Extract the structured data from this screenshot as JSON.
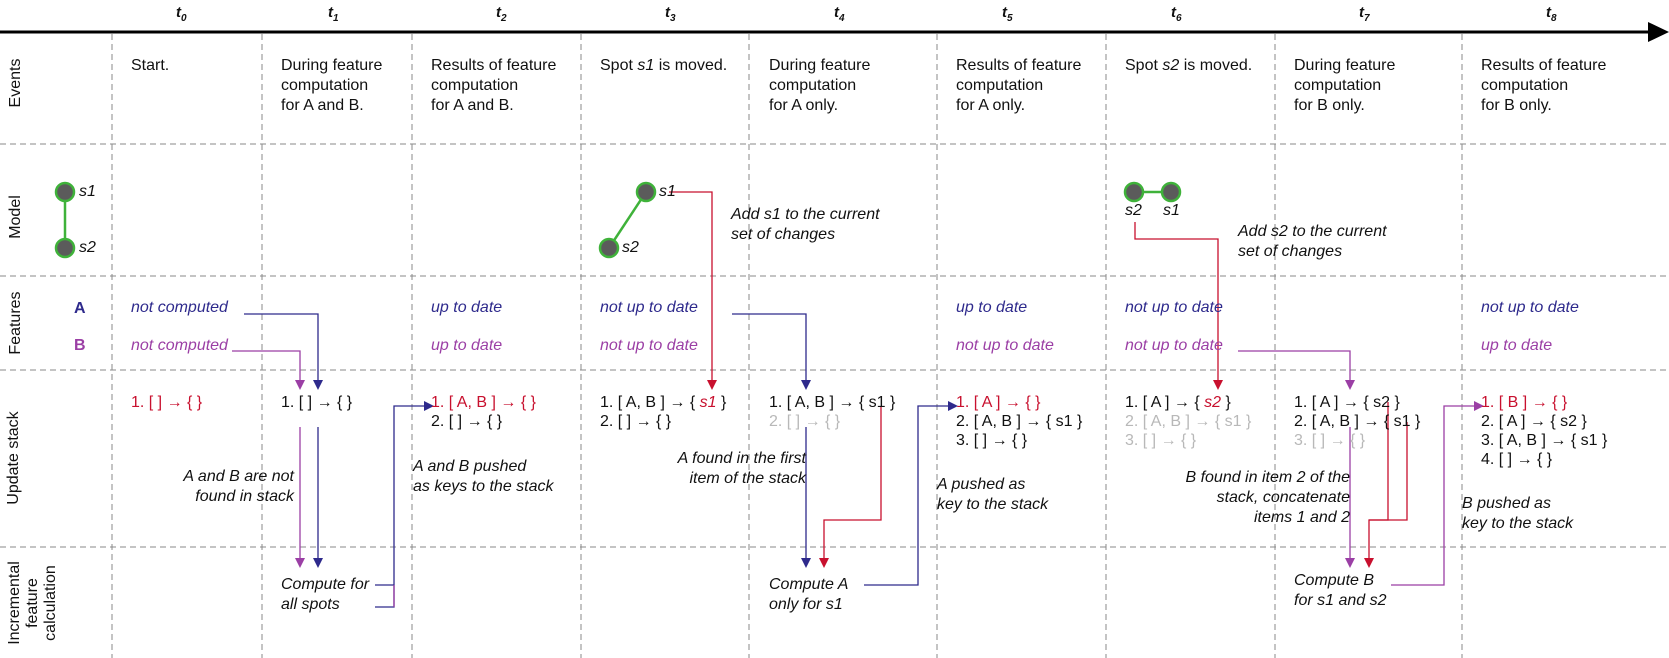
{
  "timeline": {
    "ticks": [
      {
        "base": "t",
        "sub": "0"
      },
      {
        "base": "t",
        "sub": "1"
      },
      {
        "base": "t",
        "sub": "2"
      },
      {
        "base": "t",
        "sub": "3"
      },
      {
        "base": "t",
        "sub": "4"
      },
      {
        "base": "t",
        "sub": "5"
      },
      {
        "base": "t",
        "sub": "6"
      },
      {
        "base": "t",
        "sub": "7"
      },
      {
        "base": "t",
        "sub": "8"
      }
    ]
  },
  "rows": {
    "events": "Events",
    "model": "Model",
    "features": "Features",
    "update_stack": "Update stack",
    "incremental": "Incremental\nfeature\ncalculation"
  },
  "feature_names": {
    "a": "A",
    "b": "B"
  },
  "events": [
    "Start.",
    "During feature\ncomputation\nfor A and B.",
    "Results of feature\ncomputation\nfor A and B.",
    "Spot s1 is moved.",
    "During feature\ncomputation\nfor A only.",
    "Results of feature\ncomputation\nfor A only.",
    "Spot s2 is moved.",
    "During feature\ncomputation\nfor B only.",
    "Results of feature\ncomputation\nfor B only."
  ],
  "model": {
    "s1": "s1",
    "s2": "s2",
    "note_t3": "Add s1 to the current\nset of changes",
    "note_t6": "Add s2 to the current\nset of changes"
  },
  "features": {
    "t0": {
      "a": "not computed",
      "b": "not computed"
    },
    "t2": {
      "a": "up to date",
      "b": "up to date"
    },
    "t3": {
      "a": "not up to date",
      "b": "not up to date"
    },
    "t5": {
      "a": "up to date",
      "b": "not up to date"
    },
    "t6": {
      "a": "not up to date",
      "b": "not up to date"
    },
    "t8": {
      "a": "not up to date",
      "b": "up to date"
    }
  },
  "stack": {
    "t0": [
      "1. [ ] → { }"
    ],
    "t1": [
      "1. [ ] → { }"
    ],
    "t2": [
      "1. [ A, B ] → { }",
      "2. [ ] → { }"
    ],
    "t3": [
      "1. [ A, B ] → { ",
      "s1",
      " }",
      "2. [ ] → { }"
    ],
    "t4": [
      "1. [ A, B ] → { s1 }",
      "2. [ ] → { }"
    ],
    "t5": [
      "1. [ A ] → { }",
      "2. [ A, B ] → { s1 }",
      "3. [ ] → { }"
    ],
    "t6": [
      "1. [ A ] → { ",
      "s2",
      " }",
      "2. [ A, B ] → { s1 }",
      "3. [ ] → { }"
    ],
    "t7": [
      "1. [ A ] → { s2 }",
      "2. [ A, B ] → { s1 }",
      "3. [ ] → { }"
    ],
    "t8": [
      "1. [ B ] → { }",
      "2. [ A ] → { s2 }",
      "3. [ A, B ] → { s1 }",
      "4. [ ] → { }"
    ]
  },
  "notes": {
    "t1": "A and B are not\nfound in stack",
    "t2": "A and B pushed\nas keys to the stack",
    "t3": "A found in the first\nitem of the stack",
    "t5": "A pushed as\nkey to the stack",
    "t7": "B found in item 2 of the\nstack, concatenate\nitems 1 and 2",
    "t8": "B pushed as\nkey to the stack"
  },
  "compute": {
    "t1": "Compute for\nall spots",
    "t4": "Compute A\nonly for s1",
    "t7": "Compute B\nfor s1 and s2"
  },
  "colors": {
    "red": "#c8102e",
    "blue": "#2e2a8c",
    "purple": "#9b3fa5",
    "green": "#3fb23a",
    "node": "#5b5b5b",
    "grey": "#b8b8b8",
    "divider": "#8a8a8a"
  }
}
